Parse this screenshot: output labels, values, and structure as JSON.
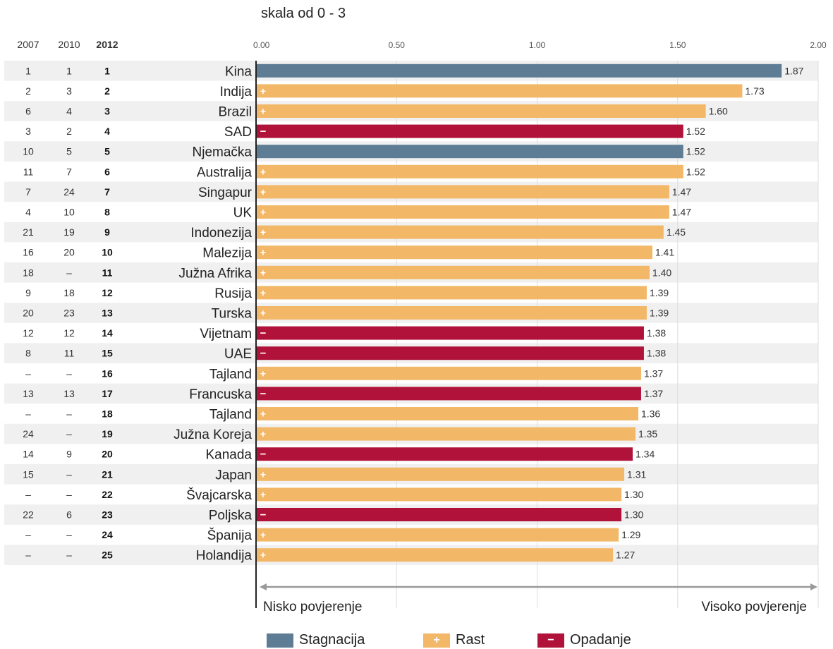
{
  "chart_data": {
    "type": "bar",
    "orientation": "horizontal",
    "subtitle": "skala od 0 - 3",
    "rank_headers": [
      "2007",
      "2010",
      "2012"
    ],
    "xlim": [
      0,
      2
    ],
    "x_ticks": [
      "0.00",
      "0.50",
      "1.00",
      "1.50",
      "2.00"
    ],
    "grid": true,
    "axis_low_label": "Nisko povjerenje",
    "axis_high_label": "Visoko povjerenje",
    "colors": {
      "Stagnacija": "#5e7d95",
      "Rast": "#f2b767",
      "Opadanje": "#b0123a",
      "row_shade": "#f0f0f0"
    },
    "legend": [
      {
        "name": "Stagnacija",
        "symbol": ""
      },
      {
        "name": "Rast",
        "symbol": "+"
      },
      {
        "name": "Opadanje",
        "symbol": "−"
      }
    ],
    "rows": [
      {
        "r2007": "1",
        "r2010": "1",
        "r2012": "1",
        "country": "Kina",
        "value": 1.87,
        "label": "1.87",
        "trend": "Stagnacija"
      },
      {
        "r2007": "2",
        "r2010": "3",
        "r2012": "2",
        "country": "Indija",
        "value": 1.73,
        "label": "1.73",
        "trend": "Rast"
      },
      {
        "r2007": "6",
        "r2010": "4",
        "r2012": "3",
        "country": "Brazil",
        "value": 1.6,
        "label": "1.60",
        "trend": "Rast"
      },
      {
        "r2007": "3",
        "r2010": "2",
        "r2012": "4",
        "country": "SAD",
        "value": 1.52,
        "label": "1.52",
        "trend": "Opadanje"
      },
      {
        "r2007": "10",
        "r2010": "5",
        "r2012": "5",
        "country": "Njemačka",
        "value": 1.52,
        "label": "1.52",
        "trend": "Stagnacija"
      },
      {
        "r2007": "11",
        "r2010": "7",
        "r2012": "6",
        "country": "Australija",
        "value": 1.52,
        "label": "1.52",
        "trend": "Rast"
      },
      {
        "r2007": "7",
        "r2010": "24",
        "r2012": "7",
        "country": "Singapur",
        "value": 1.47,
        "label": "1.47",
        "trend": "Rast"
      },
      {
        "r2007": "4",
        "r2010": "10",
        "r2012": "8",
        "country": "UK",
        "value": 1.47,
        "label": "1.47",
        "trend": "Rast"
      },
      {
        "r2007": "21",
        "r2010": "19",
        "r2012": "9",
        "country": "Indonezija",
        "value": 1.45,
        "label": "1.45",
        "trend": "Rast"
      },
      {
        "r2007": "16",
        "r2010": "20",
        "r2012": "10",
        "country": "Malezija",
        "value": 1.41,
        "label": "1.41",
        "trend": "Rast"
      },
      {
        "r2007": "18",
        "r2010": "–",
        "r2012": "11",
        "country": "Južna Afrika",
        "value": 1.4,
        "label": "1.40",
        "trend": "Rast"
      },
      {
        "r2007": "9",
        "r2010": "18",
        "r2012": "12",
        "country": "Rusija",
        "value": 1.39,
        "label": "1.39",
        "trend": "Rast"
      },
      {
        "r2007": "20",
        "r2010": "23",
        "r2012": "13",
        "country": "Turska",
        "value": 1.39,
        "label": "1.39",
        "trend": "Rast"
      },
      {
        "r2007": "12",
        "r2010": "12",
        "r2012": "14",
        "country": "Vijetnam",
        "value": 1.38,
        "label": "1.38",
        "trend": "Opadanje"
      },
      {
        "r2007": "8",
        "r2010": "11",
        "r2012": "15",
        "country": "UAE",
        "value": 1.38,
        "label": "1.38",
        "trend": "Opadanje"
      },
      {
        "r2007": "–",
        "r2010": "–",
        "r2012": "16",
        "country": "Tajland",
        "value": 1.37,
        "label": "1.37",
        "trend": "Rast"
      },
      {
        "r2007": "13",
        "r2010": "13",
        "r2012": "17",
        "country": "Francuska",
        "value": 1.37,
        "label": "1.37",
        "trend": "Opadanje"
      },
      {
        "r2007": "–",
        "r2010": "–",
        "r2012": "18",
        "country": "Tajland",
        "value": 1.36,
        "label": "1.36",
        "trend": "Rast"
      },
      {
        "r2007": "24",
        "r2010": "–",
        "r2012": "19",
        "country": "Južna Koreja",
        "value": 1.35,
        "label": "1.35",
        "trend": "Rast"
      },
      {
        "r2007": "14",
        "r2010": "9",
        "r2012": "20",
        "country": "Kanada",
        "value": 1.34,
        "label": "1.34",
        "trend": "Opadanje"
      },
      {
        "r2007": "15",
        "r2010": "–",
        "r2012": "21",
        "country": "Japan",
        "value": 1.31,
        "label": "1.31",
        "trend": "Rast"
      },
      {
        "r2007": "–",
        "r2010": "–",
        "r2012": "22",
        "country": "Švajcarska",
        "value": 1.3,
        "label": "1.30",
        "trend": "Rast"
      },
      {
        "r2007": "22",
        "r2010": "6",
        "r2012": "23",
        "country": "Poljska",
        "value": 1.3,
        "label": "1.30",
        "trend": "Opadanje"
      },
      {
        "r2007": "–",
        "r2010": "–",
        "r2012": "24",
        "country": "Španija",
        "value": 1.29,
        "label": "1.29",
        "trend": "Rast"
      },
      {
        "r2007": "–",
        "r2010": "–",
        "r2012": "25",
        "country": "Holandija",
        "value": 1.27,
        "label": "1.27",
        "trend": "Rast"
      }
    ]
  }
}
